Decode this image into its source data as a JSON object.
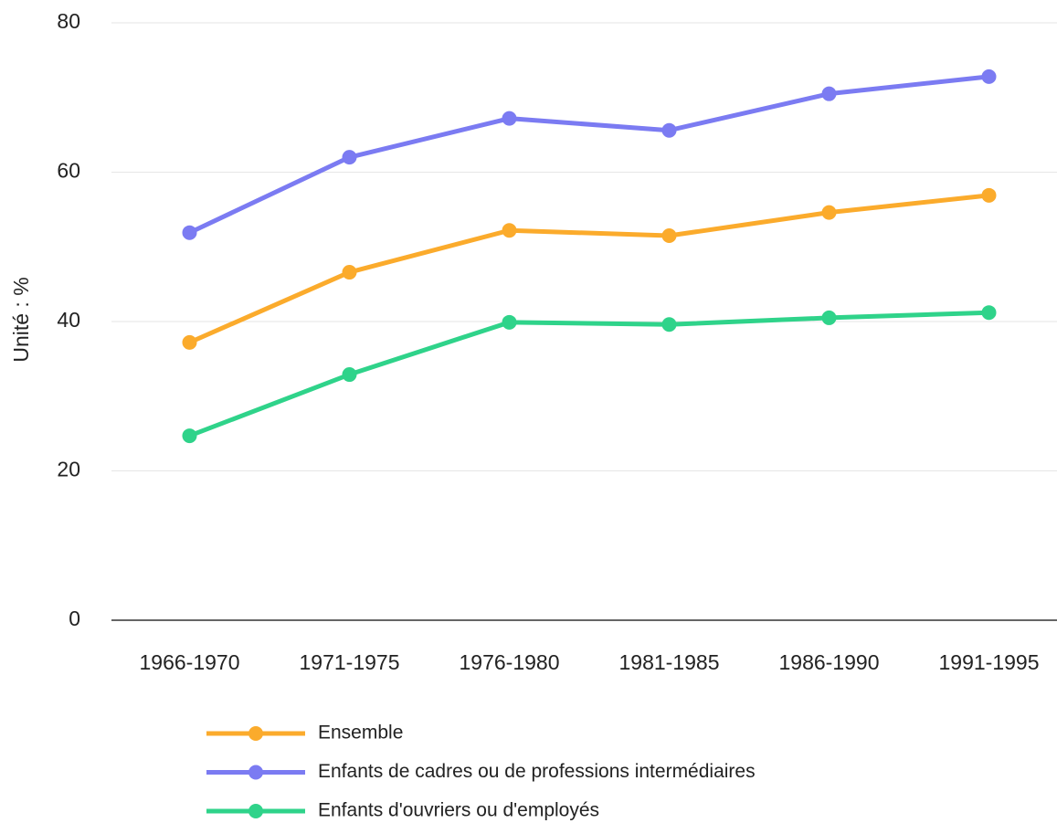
{
  "chart_data": {
    "type": "line",
    "ylabel": "Unité : %",
    "categories": [
      "1966-1970",
      "1971-1975",
      "1976-1980",
      "1981-1985",
      "1986-1990",
      "1991-1995"
    ],
    "series": [
      {
        "name": "Ensemble",
        "color": "#fbab2c",
        "values": [
          37.2,
          46.6,
          52.2,
          51.5,
          54.6,
          56.9
        ]
      },
      {
        "name": "Enfants de cadres ou de professions intermédiaires",
        "color": "#7b7bf2",
        "values": [
          51.9,
          62.0,
          67.2,
          65.6,
          70.5,
          72.8
        ]
      },
      {
        "name": "Enfants d'ouvriers ou d'employés",
        "color": "#2fd38a",
        "values": [
          24.7,
          32.9,
          39.9,
          39.6,
          40.5,
          41.2
        ]
      }
    ],
    "ylim": [
      0,
      80
    ],
    "yticks": [
      0,
      20,
      40,
      60,
      80
    ],
    "grid": true,
    "legend": "bottom"
  }
}
